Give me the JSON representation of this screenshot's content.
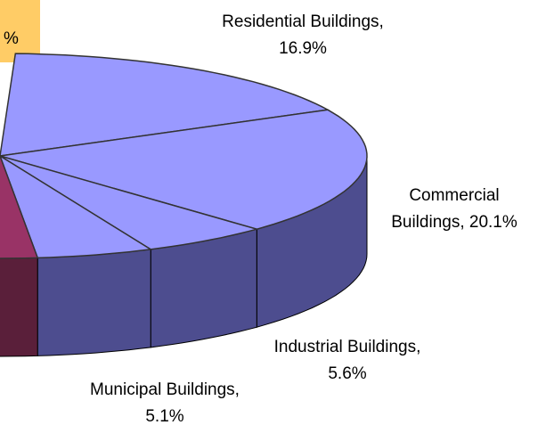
{
  "chart_data": {
    "type": "pie3d",
    "labels": [
      [
        "Residential Buildings,",
        "16.9%"
      ],
      [
        "Commercial",
        "Buildings, 20.1%"
      ],
      [
        "Industrial Buildings,",
        "5.6%"
      ],
      [
        "Municipal Buildings,",
        "5.1%"
      ],
      null
    ],
    "values": [
      16.9,
      20.1,
      5.6,
      5.1,
      10
    ],
    "colors": [
      "#9999ff",
      "#9999ff",
      "#9999ff",
      "#9999ff",
      "#993366"
    ],
    "side_colors": [
      "#4d4d8f",
      "#4d4d8f",
      "#4d4d8f",
      "#4d4d8f",
      "#5a1f3a"
    ],
    "annotations": [
      "%"
    ]
  }
}
